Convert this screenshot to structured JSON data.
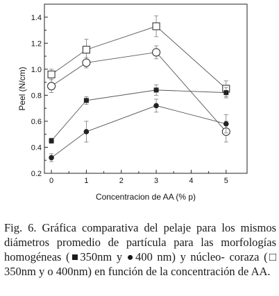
{
  "chart_data": {
    "type": "line",
    "xlabel": "Concentracion de AA (% p)",
    "ylabel": "Peel (N/cm)",
    "xlim": [
      -0.2,
      5.6
    ],
    "ylim": [
      0.2,
      1.5
    ],
    "x_ticks": [
      "0",
      "1",
      "2",
      "3",
      "4",
      "5"
    ],
    "y_ticks": [
      "0.2",
      "0.4",
      "0.6",
      "0.8",
      "1.0",
      "1.2",
      "1.4"
    ],
    "x": [
      0,
      1,
      3,
      5
    ],
    "series": [
      {
        "marker": "open-square",
        "values": [
          0.96,
          1.15,
          1.33,
          0.85
        ],
        "errors": [
          0.04,
          0.08,
          0.08,
          0.06
        ]
      },
      {
        "marker": "open-circle",
        "values": [
          0.87,
          1.05,
          1.13,
          0.52
        ],
        "errors": [
          0.05,
          0.04,
          0.05,
          0.08
        ]
      },
      {
        "marker": "filled-square",
        "values": [
          0.45,
          0.76,
          0.84,
          0.82
        ],
        "errors": [
          0.02,
          0.03,
          0.04,
          0.04
        ]
      },
      {
        "marker": "filled-circle",
        "values": [
          0.32,
          0.52,
          0.72,
          0.58
        ],
        "errors": [
          0.03,
          0.08,
          0.05,
          0.07
        ]
      }
    ],
    "grid": false,
    "legend": "none"
  },
  "caption": {
    "text": "Fig. 6. Gráfica comparativa del pelaje para los mismos diámetros promedio de partícula para las morfologías homogéneas (■350nm y ●400 nm) y núcleo- coraza (□ 350nm y o 400nm) en función de la concentración de AA."
  }
}
